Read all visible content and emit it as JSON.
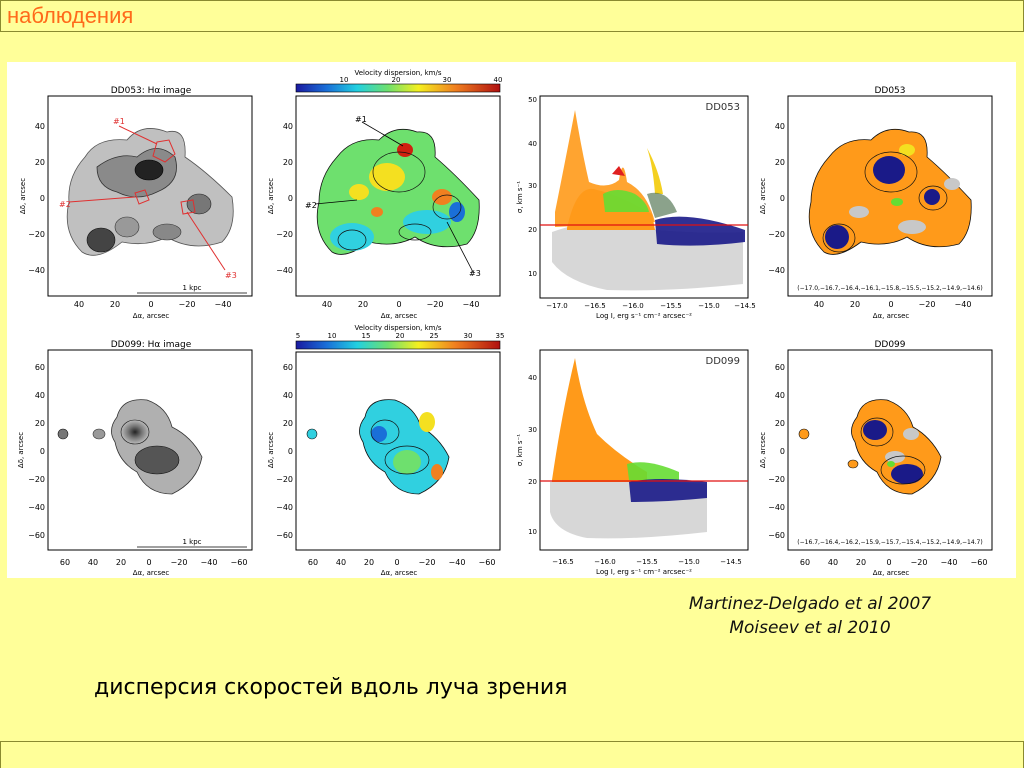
{
  "slide": {
    "title": "наблюдения",
    "citation_lines": [
      "Martinez-Delgado et al 2007",
      "Moiseev et al 2010"
    ],
    "caption": "дисперсия скоростей вдоль луча зрения"
  },
  "colors": {
    "background": "#ffff99",
    "title": "#ff6a1a",
    "orange_points": "#ff9a1a",
    "green_points": "#66dd33",
    "navy_points": "#1a1a88",
    "gray_points": "#c8c8c8",
    "red_line": "#e01010"
  },
  "figure": {
    "rows": [
      {
        "galaxy": "DD053",
        "halpha_title": "DD053: Hα image",
        "halpha_labels": [
          "#1",
          "#2",
          "#3"
        ],
        "halpha_scale": "1 kpc",
        "map_yticks": [
          "40",
          "20",
          "0",
          "−20",
          "−40"
        ],
        "map_xticks": [
          "40",
          "20",
          "0",
          "−20",
          "−40"
        ],
        "ylabel": "Δδ, arcsec",
        "xlabel": "Δα, arcsec",
        "vd_colorbar_title": "Velocity dispersion, km/s",
        "vd_colorbar_ticks": [
          "10",
          "20",
          "30",
          "40"
        ],
        "vd_labels": [
          "#1",
          "#2",
          "#3"
        ],
        "scatter_label": "DD053",
        "scatter_yticks": [
          "50",
          "40",
          "30",
          "20",
          "10"
        ],
        "scatter_xticks": [
          "−17.0",
          "−16.5",
          "−16.0",
          "−15.5",
          "−15.0",
          "−14.5"
        ],
        "scatter_ylabel": "σ, km s⁻¹",
        "scatter_xlabel": "Log I, erg s⁻¹ cm⁻² arcsec⁻²",
        "class_title": "DD053",
        "class_levels": "(−17.0,−16.7,−16.4,−16.1,−15.8,−15.5,−15.2,−14.9,−14.6)"
      },
      {
        "galaxy": "DD099",
        "halpha_title": "DD099: Hα image",
        "halpha_scale": "1 kpc",
        "map_yticks": [
          "60",
          "40",
          "20",
          "0",
          "−20",
          "−40",
          "−60"
        ],
        "map_xticks": [
          "60",
          "40",
          "20",
          "0",
          "−20",
          "−40",
          "−60"
        ],
        "ylabel": "Δδ, arcsec",
        "xlabel": "Δα, arcsec",
        "vd_colorbar_title": "Velocity dispersion, km/s",
        "vd_colorbar_ticks": [
          "5",
          "10",
          "15",
          "20",
          "25",
          "30",
          "35"
        ],
        "scatter_label": "DD099",
        "scatter_yticks": [
          "40",
          "30",
          "20",
          "10"
        ],
        "scatter_xticks": [
          "−16.5",
          "−16.0",
          "−15.5",
          "−15.0",
          "−14.5"
        ],
        "scatter_ylabel": "σ, km s⁻¹",
        "scatter_xlabel": "Log I, erg s⁻¹ cm⁻² arcsec⁻²",
        "class_title": "DD099",
        "class_levels": "(−16.7,−16.4,−16.2,−15.9,−15.7,−15.4,−15.2,−14.9,−14.7)"
      }
    ]
  }
}
